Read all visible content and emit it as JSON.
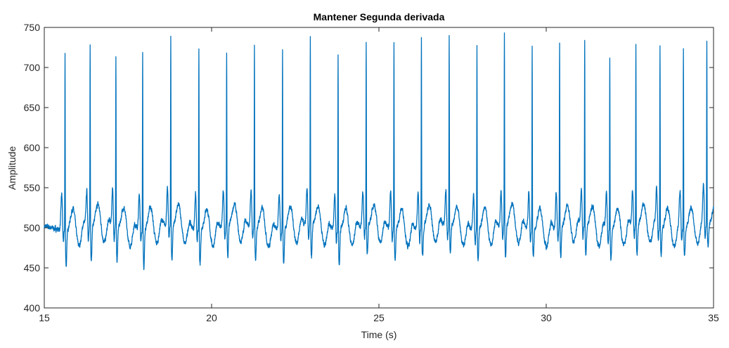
{
  "chart_data": {
    "type": "line",
    "title": "Mantener Segunda derivada",
    "xlabel": "Time (s)",
    "ylabel": "Amplitude",
    "xlim": [
      15,
      35
    ],
    "ylim": [
      400,
      750
    ],
    "xticks": [
      15,
      20,
      25,
      30,
      35
    ],
    "yticks": [
      400,
      450,
      500,
      550,
      600,
      650,
      700,
      750
    ],
    "grid": false,
    "box": true,
    "series": [
      {
        "color": "#0072BD",
        "baseline": 500,
        "noise_amplitude": 6,
        "beats": [
          {
            "t": 15.62,
            "peak": 726,
            "trough": 450
          },
          {
            "t": 16.37,
            "peak": 733,
            "trough": 455
          },
          {
            "t": 17.14,
            "peak": 720,
            "trough": 453
          },
          {
            "t": 17.94,
            "peak": 732,
            "trough": 445
          },
          {
            "t": 18.78,
            "peak": 742,
            "trough": 452
          },
          {
            "t": 19.62,
            "peak": 730,
            "trough": 450
          },
          {
            "t": 20.45,
            "peak": 723,
            "trough": 458
          },
          {
            "t": 21.28,
            "peak": 735,
            "trough": 455
          },
          {
            "t": 22.12,
            "peak": 732,
            "trough": 452
          },
          {
            "t": 22.95,
            "peak": 742,
            "trough": 455
          },
          {
            "t": 23.78,
            "peak": 725,
            "trough": 450
          },
          {
            "t": 24.62,
            "peak": 737,
            "trough": 460
          },
          {
            "t": 25.45,
            "peak": 737,
            "trough": 458
          },
          {
            "t": 26.27,
            "peak": 744,
            "trough": 460
          },
          {
            "t": 27.1,
            "peak": 743,
            "trough": 460
          },
          {
            "t": 27.93,
            "peak": 738,
            "trough": 458
          },
          {
            "t": 28.75,
            "peak": 745,
            "trough": 458
          },
          {
            "t": 29.58,
            "peak": 732,
            "trough": 460
          },
          {
            "t": 30.4,
            "peak": 738,
            "trough": 460
          },
          {
            "t": 31.15,
            "peak": 738,
            "trough": 460
          },
          {
            "t": 31.9,
            "peak": 720,
            "trough": 457
          },
          {
            "t": 32.68,
            "peak": 732,
            "trough": 460
          },
          {
            "t": 33.4,
            "peak": 730,
            "trough": 462
          },
          {
            "t": 34.1,
            "peak": 732,
            "trough": 462
          },
          {
            "t": 34.8,
            "peak": 731,
            "trough": 470
          }
        ]
      }
    ]
  }
}
